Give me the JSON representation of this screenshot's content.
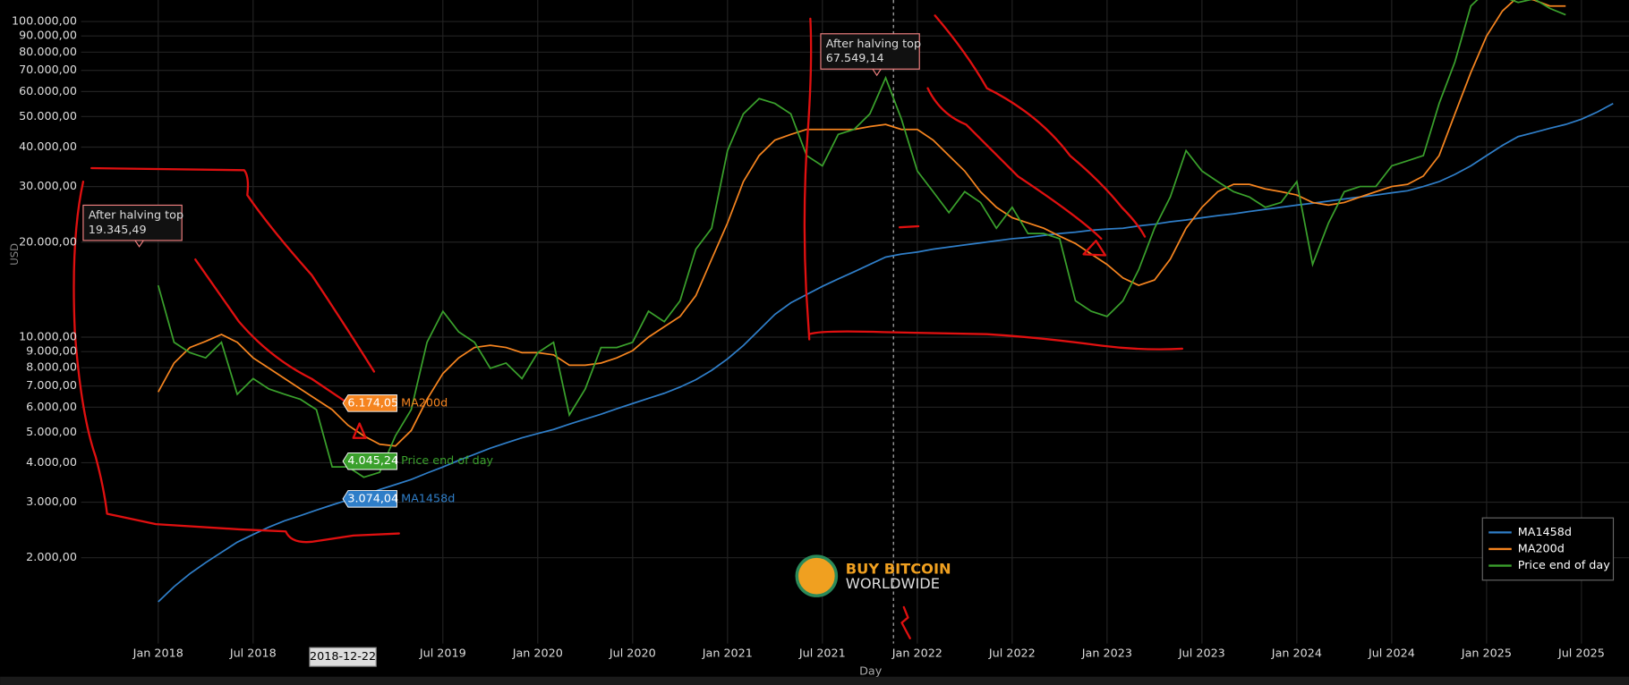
{
  "chart_data": {
    "type": "line",
    "log_y": true,
    "grid": true,
    "legend": "lower right",
    "ylabel": "USD",
    "xlabel": "Day",
    "ylim": [
      1070,
      117000
    ],
    "xlim": [
      "2017-03",
      "2025-10"
    ],
    "yticks": [
      {
        "value": 100000,
        "label": "100.000,00"
      },
      {
        "value": 90000,
        "label": "90.000,00"
      },
      {
        "value": 80000,
        "label": "80.000,00"
      },
      {
        "value": 70000,
        "label": "70.000,00"
      },
      {
        "value": 60000,
        "label": "60.000,00"
      },
      {
        "value": 50000,
        "label": "50.000,00"
      },
      {
        "value": 40000,
        "label": "40.000,00"
      },
      {
        "value": 30000,
        "label": "30.000,00"
      },
      {
        "value": 20000,
        "label": "20.000,00"
      },
      {
        "value": 10000,
        "label": "10.000,00"
      },
      {
        "value": 9000,
        "label": "9.000,00"
      },
      {
        "value": 8000,
        "label": "8.000,00"
      },
      {
        "value": 7000,
        "label": "7.000,00"
      },
      {
        "value": 6000,
        "label": "6.000,00"
      },
      {
        "value": 5000,
        "label": "5.000,00"
      },
      {
        "value": 4000,
        "label": "4.000,00"
      },
      {
        "value": 3000,
        "label": "3.000,00"
      },
      {
        "value": 2000,
        "label": "2.000,00"
      }
    ],
    "xticks": [
      {
        "value": "2018-01",
        "label": "Jan 2018"
      },
      {
        "value": "2018-07",
        "label": "Jul 2018"
      },
      {
        "value": "2019-07",
        "label": "Jul 2019"
      },
      {
        "value": "2020-01",
        "label": "Jan 2020"
      },
      {
        "value": "2020-07",
        "label": "Jul 2020"
      },
      {
        "value": "2021-01",
        "label": "Jan 2021"
      },
      {
        "value": "2021-07",
        "label": "Jul 2021"
      },
      {
        "value": "2022-01",
        "label": "Jan 2022"
      },
      {
        "value": "2022-07",
        "label": "Jul 2022"
      },
      {
        "value": "2023-01",
        "label": "Jan 2023"
      },
      {
        "value": "2023-07",
        "label": "Jul 2023"
      },
      {
        "value": "2024-01",
        "label": "Jan 2024"
      },
      {
        "value": "2024-07",
        "label": "Jul 2024"
      },
      {
        "value": "2025-01",
        "label": "Jan 2025"
      },
      {
        "value": "2025-07",
        "label": "Jul 2025"
      }
    ],
    "x": [
      "2018-01",
      "2018-02",
      "2018-03",
      "2018-04",
      "2018-05",
      "2018-06",
      "2018-07",
      "2018-08",
      "2018-09",
      "2018-10",
      "2018-11",
      "2018-12",
      "2019-01",
      "2019-02",
      "2019-03",
      "2019-04",
      "2019-05",
      "2019-06",
      "2019-07",
      "2019-08",
      "2019-09",
      "2019-10",
      "2019-11",
      "2019-12",
      "2020-01",
      "2020-02",
      "2020-03",
      "2020-04",
      "2020-05",
      "2020-06",
      "2020-07",
      "2020-08",
      "2020-09",
      "2020-10",
      "2020-11",
      "2020-12",
      "2021-01",
      "2021-02",
      "2021-03",
      "2021-04",
      "2021-05",
      "2021-06",
      "2021-07",
      "2021-08",
      "2021-09",
      "2021-10",
      "2021-11",
      "2021-12",
      "2022-01",
      "2022-02",
      "2022-03",
      "2022-04",
      "2022-05",
      "2022-06",
      "2022-07",
      "2022-08",
      "2022-09",
      "2022-10",
      "2022-11",
      "2022-12",
      "2023-01",
      "2023-02",
      "2023-03",
      "2023-04",
      "2023-05",
      "2023-06",
      "2023-07",
      "2023-08",
      "2023-09",
      "2023-10",
      "2023-11",
      "2023-12",
      "2024-01",
      "2024-02",
      "2024-03",
      "2024-04",
      "2024-05",
      "2024-06",
      "2024-07",
      "2024-08",
      "2024-09",
      "2024-10",
      "2024-11",
      "2024-12",
      "2025-01",
      "2025-02",
      "2025-03",
      "2025-04",
      "2025-05",
      "2025-06",
      "2025-07",
      "2025-08",
      "2025-09"
    ],
    "series": [
      {
        "name": "MA1458d",
        "color": "#2f7ec8",
        "values": [
          1450,
          1620,
          1780,
          1930,
          2080,
          2240,
          2370,
          2500,
          2620,
          2720,
          2830,
          2940,
          3050,
          3150,
          3290,
          3410,
          3540,
          3710,
          3880,
          4070,
          4250,
          4450,
          4620,
          4800,
          4950,
          5100,
          5300,
          5500,
          5700,
          5930,
          6160,
          6400,
          6640,
          6950,
          7330,
          7850,
          8530,
          9410,
          10540,
          11810,
          12840,
          13640,
          14490,
          15280,
          16110,
          17000,
          17930,
          18330,
          18600,
          19000,
          19300,
          19600,
          19900,
          20200,
          20500,
          20700,
          21000,
          21300,
          21500,
          21800,
          22000,
          22140,
          22500,
          22800,
          23200,
          23500,
          23900,
          24250,
          24600,
          25000,
          25400,
          25800,
          26200,
          26570,
          26970,
          27400,
          27800,
          28200,
          28650,
          29100,
          30000,
          31100,
          32800,
          34900,
          37600,
          40500,
          43200,
          44500,
          45900,
          47200,
          49000,
          51700,
          55000
        ]
      },
      {
        "name": "MA200d",
        "color": "#f5841f",
        "values": [
          6700,
          8280,
          9270,
          9700,
          10200,
          9630,
          8600,
          7970,
          7390,
          6850,
          6350,
          5890,
          5260,
          4870,
          4580,
          4520,
          5060,
          6350,
          7670,
          8600,
          9270,
          9420,
          9270,
          8930,
          8930,
          8790,
          8150,
          8150,
          8280,
          8600,
          9060,
          10000,
          10790,
          11630,
          13540,
          17660,
          23000,
          31100,
          37600,
          42100,
          43900,
          45500,
          45500,
          45500,
          45500,
          46500,
          47200,
          45500,
          45500,
          42100,
          37600,
          33600,
          28900,
          25800,
          23900,
          23000,
          22140,
          20900,
          19800,
          18330,
          17000,
          15400,
          14600,
          15170,
          17660,
          22140,
          25800,
          28900,
          30500,
          30500,
          29500,
          28900,
          28200,
          26700,
          26200,
          26700,
          27800,
          28900,
          30000,
          30500,
          32400,
          37600,
          51000,
          68900,
          90000,
          108000,
          120000,
          117000,
          112000,
          112000,
          null,
          null,
          null
        ]
      },
      {
        "name": "Price end of day",
        "color": "#3aa02c",
        "values": [
          14600,
          9630,
          8930,
          8600,
          9630,
          6590,
          7390,
          6850,
          6590,
          6350,
          5890,
          3880,
          3880,
          3600,
          3730,
          4870,
          5890,
          9630,
          12080,
          10390,
          9630,
          7970,
          8280,
          7390,
          8930,
          9630,
          5670,
          6850,
          9270,
          9270,
          9630,
          12080,
          11200,
          13040,
          19000,
          22140,
          39000,
          51000,
          57000,
          55000,
          51000,
          37600,
          34900,
          43900,
          45500,
          51000,
          66300,
          49100,
          33600,
          28900,
          24800,
          28900,
          26700,
          22140,
          25800,
          21300,
          21300,
          20500,
          13040,
          12080,
          11630,
          13040,
          16360,
          22140,
          27800,
          39000,
          33600,
          31100,
          28900,
          27800,
          25800,
          26700,
          31100,
          17000,
          23000,
          28900,
          30000,
          30000,
          34900,
          36200,
          37600,
          55000,
          74500,
          112000,
          125000,
          120000,
          115000,
          118000,
          110000,
          105000,
          null,
          null,
          null
        ]
      }
    ],
    "crosshair": {
      "x": "2018-12-22",
      "label": "2018-12-22",
      "values": [
        3074.04,
        6174.05,
        4045.24
      ],
      "value_labels": [
        "3.074,04",
        "6.174,05",
        "4.045,24"
      ]
    },
    "annotations": [
      {
        "title": "After halving top",
        "value": 19345.49,
        "label": "19.345,49"
      },
      {
        "title": "After halving top",
        "value": 67549.14,
        "label": "67.549,14"
      }
    ],
    "watermark": [
      "BUY BITCOIN",
      "WORLDWIDE"
    ]
  }
}
